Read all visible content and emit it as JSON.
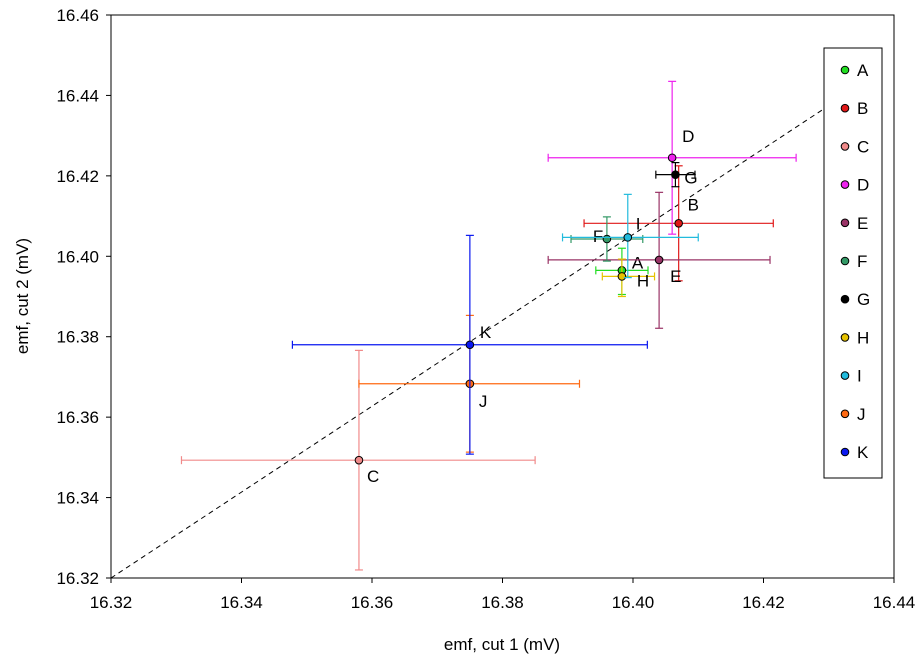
{
  "chart_data": {
    "type": "scatter",
    "title": "",
    "xlabel": "emf, cut 1 (mV)",
    "ylabel": "emf, cut 2 (mV)",
    "xlim": [
      16.32,
      16.44
    ],
    "ylim": [
      16.32,
      16.46
    ],
    "x_ticks": [
      16.32,
      16.34,
      16.36,
      16.38,
      16.4,
      16.42,
      16.44
    ],
    "y_ticks": [
      16.32,
      16.34,
      16.36,
      16.38,
      16.4,
      16.42,
      16.44,
      16.46
    ],
    "x_tick_labels": [
      "16.32",
      "16.34",
      "16.36",
      "16.38",
      "16.40",
      "16.42",
      "16.44"
    ],
    "y_tick_labels": [
      "16.32",
      "16.34",
      "16.36",
      "16.38",
      "16.40",
      "16.42",
      "16.44",
      "16.46"
    ],
    "grid": false,
    "legend_position": "right",
    "reference_line": {
      "style": "dashed",
      "from": [
        16.32,
        16.32
      ],
      "to": [
        16.4336,
        16.4413
      ]
    },
    "series": [
      {
        "name": "A",
        "color": "#22dd22",
        "x": 16.3983,
        "y": 16.3965,
        "xerr_minus": 0.004,
        "xerr_plus": 0.004,
        "yerr_minus": 0.006,
        "yerr_plus": 0.0055
      },
      {
        "name": "B",
        "color": "#e01818",
        "x": 16.407,
        "y": 16.4082,
        "xerr_minus": 0.0145,
        "xerr_plus": 0.0145,
        "yerr_minus": 0.0143,
        "yerr_plus": 0.0143
      },
      {
        "name": "C",
        "color": "#f08a8a",
        "x": 16.358,
        "y": 16.3493,
        "xerr_minus": 0.0272,
        "xerr_plus": 0.027,
        "yerr_minus": 0.0273,
        "yerr_plus": 0.0273
      },
      {
        "name": "D",
        "color": "#ee22ee",
        "x": 16.406,
        "y": 16.4245,
        "xerr_minus": 0.019,
        "xerr_plus": 0.019,
        "yerr_minus": 0.019,
        "yerr_plus": 0.019
      },
      {
        "name": "E",
        "color": "#993366",
        "x": 16.404,
        "y": 16.3991,
        "xerr_minus": 0.017,
        "xerr_plus": 0.017,
        "yerr_minus": 0.017,
        "yerr_plus": 0.0168
      },
      {
        "name": "F",
        "color": "#339966",
        "x": 16.396,
        "y": 16.4043,
        "xerr_minus": 0.0055,
        "xerr_plus": 0.0055,
        "yerr_minus": 0.0055,
        "yerr_plus": 0.0055
      },
      {
        "name": "G",
        "color": "#000000",
        "x": 16.4065,
        "y": 16.4203,
        "xerr_minus": 0.003,
        "xerr_plus": 0.003,
        "yerr_minus": 0.003,
        "yerr_plus": 0.003
      },
      {
        "name": "H",
        "color": "#e6c200",
        "x": 16.3983,
        "y": 16.395,
        "xerr_minus": 0.003,
        "xerr_plus": 0.005,
        "yerr_minus": 0.005,
        "yerr_plus": 0.0043
      },
      {
        "name": "I",
        "color": "#22bbdd",
        "x": 16.3992,
        "y": 16.4047,
        "xerr_minus": 0.01,
        "xerr_plus": 0.0108,
        "yerr_minus": 0.01,
        "yerr_plus": 0.0107
      },
      {
        "name": "J",
        "color": "#ff6a13",
        "x": 16.375,
        "y": 16.3683,
        "xerr_minus": 0.017,
        "xerr_plus": 0.0168,
        "yerr_minus": 0.017,
        "yerr_plus": 0.017
      },
      {
        "name": "K",
        "color": "#0a18f0",
        "x": 16.375,
        "y": 16.378,
        "xerr_minus": 0.0272,
        "xerr_plus": 0.0272,
        "yerr_minus": 0.0272,
        "yerr_plus": 0.0272
      }
    ]
  }
}
